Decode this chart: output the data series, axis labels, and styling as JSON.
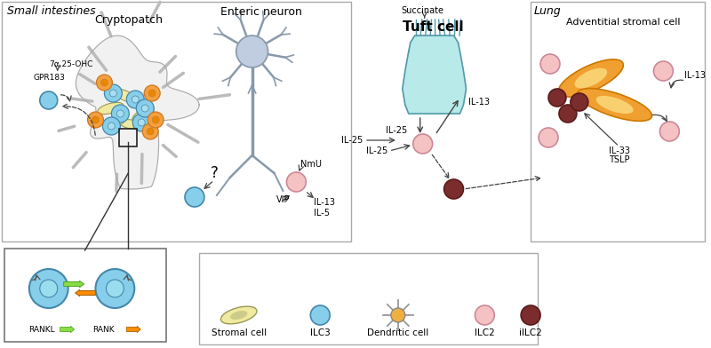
{
  "bg_color": "#ffffff",
  "small_intestine_label": "Small intestines",
  "cryptopatch_label": "Cryptopatch",
  "enteric_neuron_label": "Enteric neuron",
  "tuft_cell_label": "Tuft cell",
  "lung_label": "Lung",
  "adventitial_label": "Adventitial stromal cell",
  "ilc3_color": "#87CEEB",
  "ilc3_edge": "#4488aa",
  "ilc2_color": "#F4C2C2",
  "ilc2_edge": "#cc8899",
  "iilc2_color": "#7B2D2D",
  "iilc2_edge": "#5a1a1a",
  "stromal_color": "#F0EAA0",
  "stromal_edge": "#999955",
  "neuron_color": "#C0CCE0",
  "neuron_edge": "#8899aa",
  "tuft_color": "#B8EAEA",
  "tuft_edge": "#5599aa",
  "adv_orange": "#F0A030",
  "adv_inner": "#F8D070",
  "adv_edge": "#cc7700",
  "rankl_green": "#88DD44",
  "rank_orange": "#FF8C00",
  "arrow_color": "#444444",
  "box_edge": "#aaaaaa",
  "inset_edge": "#777777"
}
